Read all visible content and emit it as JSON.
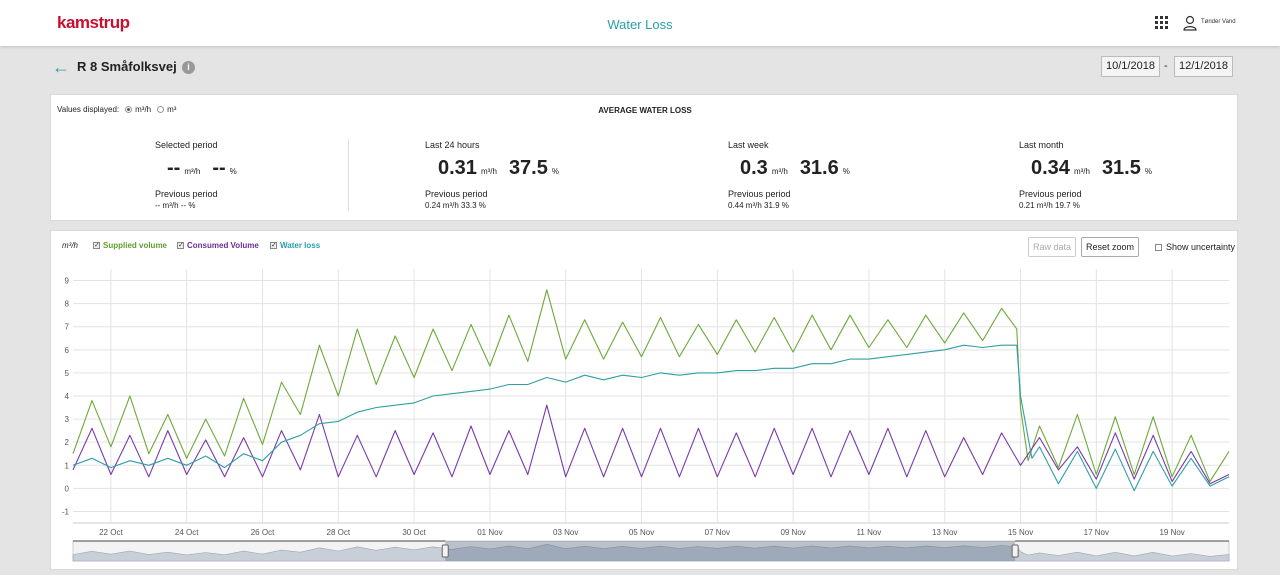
{
  "header": {
    "logo": "kamstrup",
    "app_title": "Water Loss",
    "user_name": "Tønder Vand",
    "icons": [
      "apps-grid-icon",
      "user-icon"
    ]
  },
  "page": {
    "title": "R 8 Småfolksvej",
    "date_from": "10/1/2018",
    "date_sep": "-",
    "date_to": "12/1/2018"
  },
  "summary": {
    "values_displayed_label": "Values displayed:",
    "unit_rate": "m³/h",
    "unit_volume": "m³",
    "selected_unit": "m³/h",
    "title": "AVERAGE WATER LOSS",
    "stats": [
      {
        "label": "Selected period",
        "value": "--",
        "unit": "m³/h",
        "pct": "--",
        "pct_unit": "%",
        "prev_label": "Previous period",
        "prev_value": "-- m³/h    -- %"
      },
      {
        "label": "Last 24 hours",
        "value": "0.31",
        "unit": "m³/h",
        "pct": "37.5",
        "pct_unit": "%",
        "prev_label": "Previous period",
        "prev_value": "0.24 m³/h    33.3 %"
      },
      {
        "label": "Last week",
        "value": "0.3",
        "unit": "m³/h",
        "pct": "31.6",
        "pct_unit": "%",
        "prev_label": "Previous period",
        "prev_value": "0.44 m³/h    31.9 %"
      },
      {
        "label": "Last month",
        "value": "0.34",
        "unit": "m³/h",
        "pct": "31.5",
        "pct_unit": "%",
        "prev_label": "Previous period",
        "prev_value": "0.21 m³/h    19.7 %"
      }
    ]
  },
  "chart_controls": {
    "unit_label": "m³/h",
    "legend": [
      {
        "name": "Supplied volume",
        "color": "#5f9e2f",
        "checked": true
      },
      {
        "name": "Consumed Volume",
        "color": "#6a2f95",
        "checked": true
      },
      {
        "name": "Water loss",
        "color": "#2a9fa8",
        "checked": true
      }
    ],
    "raw_data_label": "Raw data",
    "reset_zoom_label": "Reset zoom",
    "show_uncertainty_label": "Show uncertainty"
  },
  "chart_data": {
    "type": "line",
    "y_ticks": [
      -1,
      0,
      1,
      2,
      3,
      4,
      5,
      6,
      7,
      8,
      9
    ],
    "ylim": [
      -1.5,
      9.5
    ],
    "xlim": [
      21.0,
      51.5
    ],
    "x_tick_labels": [
      "22 Oct",
      "24 Oct",
      "26 Oct",
      "28 Oct",
      "30 Oct",
      "01 Nov",
      "03 Nov",
      "05 Nov",
      "07 Nov",
      "09 Nov",
      "11 Nov",
      "13 Nov",
      "15 Nov",
      "17 Nov",
      "19 Nov"
    ],
    "x_tick_days": [
      22,
      24,
      26,
      28,
      30,
      32,
      34,
      36,
      38,
      40,
      42,
      44,
      46,
      48,
      50
    ],
    "grid": true,
    "series": [
      {
        "name": "Supplied volume",
        "color": "#6ea83a",
        "x": [
          21.0,
          21.5,
          22.0,
          22.5,
          23.0,
          23.5,
          24.0,
          24.5,
          25.0,
          25.5,
          26.0,
          26.5,
          27.0,
          27.5,
          28.0,
          28.5,
          29.0,
          29.5,
          30.0,
          30.5,
          31.0,
          31.5,
          32.0,
          32.5,
          33.0,
          33.5,
          34.0,
          34.5,
          35.0,
          35.5,
          36.0,
          36.5,
          37.0,
          37.5,
          38.0,
          38.5,
          39.0,
          39.5,
          40.0,
          40.5,
          41.0,
          41.5,
          42.0,
          42.5,
          43.0,
          43.5,
          44.0,
          44.5,
          45.0,
          45.5,
          45.9,
          46.0,
          46.2,
          46.5,
          47.0,
          47.5,
          48.0,
          48.5,
          49.0,
          49.5,
          50.0,
          50.5,
          51.0,
          51.5
        ],
        "values": [
          1.5,
          3.8,
          1.8,
          4.0,
          1.5,
          3.2,
          1.3,
          3.0,
          1.4,
          3.9,
          1.9,
          4.6,
          3.2,
          6.2,
          4.0,
          6.9,
          4.5,
          6.6,
          4.8,
          6.9,
          5.1,
          7.1,
          5.3,
          7.5,
          5.5,
          8.6,
          5.6,
          7.3,
          5.6,
          7.2,
          5.7,
          7.4,
          5.7,
          7.1,
          5.8,
          7.3,
          5.9,
          7.4,
          5.9,
          7.5,
          6.0,
          7.5,
          6.1,
          7.3,
          6.1,
          7.5,
          6.3,
          7.6,
          6.4,
          7.8,
          6.9,
          3.5,
          1.2,
          2.7,
          0.9,
          3.2,
          0.6,
          3.1,
          0.6,
          3.1,
          0.5,
          2.3,
          0.3,
          1.6
        ]
      },
      {
        "name": "Consumed Volume",
        "color": "#7a3aa8",
        "x": [
          21.0,
          21.5,
          22.0,
          22.5,
          23.0,
          23.5,
          24.0,
          24.5,
          25.0,
          25.5,
          26.0,
          26.5,
          27.0,
          27.5,
          28.0,
          28.5,
          29.0,
          29.5,
          30.0,
          30.5,
          31.0,
          31.5,
          32.0,
          32.5,
          33.0,
          33.5,
          34.0,
          34.5,
          35.0,
          35.5,
          36.0,
          36.5,
          37.0,
          37.5,
          38.0,
          38.5,
          39.0,
          39.5,
          40.0,
          40.5,
          41.0,
          41.5,
          42.0,
          42.5,
          43.0,
          43.5,
          44.0,
          44.5,
          45.0,
          45.5,
          46.0,
          46.5,
          47.0,
          47.5,
          48.0,
          48.5,
          49.0,
          49.5,
          50.0,
          50.5,
          51.0,
          51.5
        ],
        "values": [
          0.8,
          2.6,
          0.6,
          2.3,
          0.5,
          2.5,
          0.6,
          2.1,
          0.5,
          2.2,
          0.5,
          2.5,
          0.8,
          3.2,
          0.5,
          2.3,
          0.5,
          2.5,
          0.6,
          2.4,
          0.5,
          2.7,
          0.6,
          2.5,
          0.6,
          3.6,
          0.5,
          2.6,
          0.5,
          2.6,
          0.5,
          2.6,
          0.5,
          2.6,
          0.5,
          2.4,
          0.5,
          2.6,
          0.6,
          2.6,
          0.5,
          2.5,
          0.6,
          2.6,
          0.5,
          2.5,
          0.5,
          2.2,
          0.6,
          2.4,
          1.0,
          2.2,
          0.8,
          1.8,
          0.4,
          2.4,
          0.4,
          2.3,
          0.3,
          1.6,
          0.2,
          0.6
        ]
      },
      {
        "name": "Water loss",
        "color": "#2f9fa5",
        "x": [
          21.0,
          21.5,
          22.0,
          22.5,
          23.0,
          23.5,
          24.0,
          24.5,
          25.0,
          25.5,
          26.0,
          26.5,
          27.0,
          27.5,
          28.0,
          28.5,
          29.0,
          29.5,
          30.0,
          30.5,
          31.0,
          31.5,
          32.0,
          32.5,
          33.0,
          33.5,
          34.0,
          34.5,
          35.0,
          35.5,
          36.0,
          36.5,
          37.0,
          37.5,
          38.0,
          38.5,
          39.0,
          39.5,
          40.0,
          40.5,
          41.0,
          41.5,
          42.0,
          42.5,
          43.0,
          43.5,
          44.0,
          44.5,
          45.0,
          45.5,
          45.9,
          46.0,
          46.3,
          46.5,
          47.0,
          47.5,
          48.0,
          48.5,
          49.0,
          49.5,
          50.0,
          50.5,
          51.0,
          51.5
        ],
        "values": [
          1.0,
          1.3,
          0.9,
          1.2,
          1.0,
          1.3,
          1.0,
          1.4,
          0.9,
          1.5,
          1.2,
          2.0,
          2.3,
          2.8,
          2.9,
          3.3,
          3.5,
          3.6,
          3.7,
          4.0,
          4.1,
          4.2,
          4.3,
          4.5,
          4.5,
          4.8,
          4.6,
          4.9,
          4.7,
          4.9,
          4.8,
          5.0,
          4.9,
          5.0,
          5.0,
          5.1,
          5.1,
          5.2,
          5.2,
          5.4,
          5.4,
          5.6,
          5.6,
          5.7,
          5.8,
          5.9,
          6.0,
          6.2,
          6.1,
          6.2,
          6.2,
          4.0,
          1.3,
          1.8,
          0.2,
          1.6,
          0.0,
          1.7,
          -0.1,
          1.6,
          0.1,
          1.3,
          0.1,
          0.5
        ]
      }
    ]
  },
  "navigator": {
    "left_handle": "navigator-left-handle",
    "right_handle": "navigator-right-handle",
    "selected_range_fraction": [
      0.322,
      0.815
    ]
  }
}
